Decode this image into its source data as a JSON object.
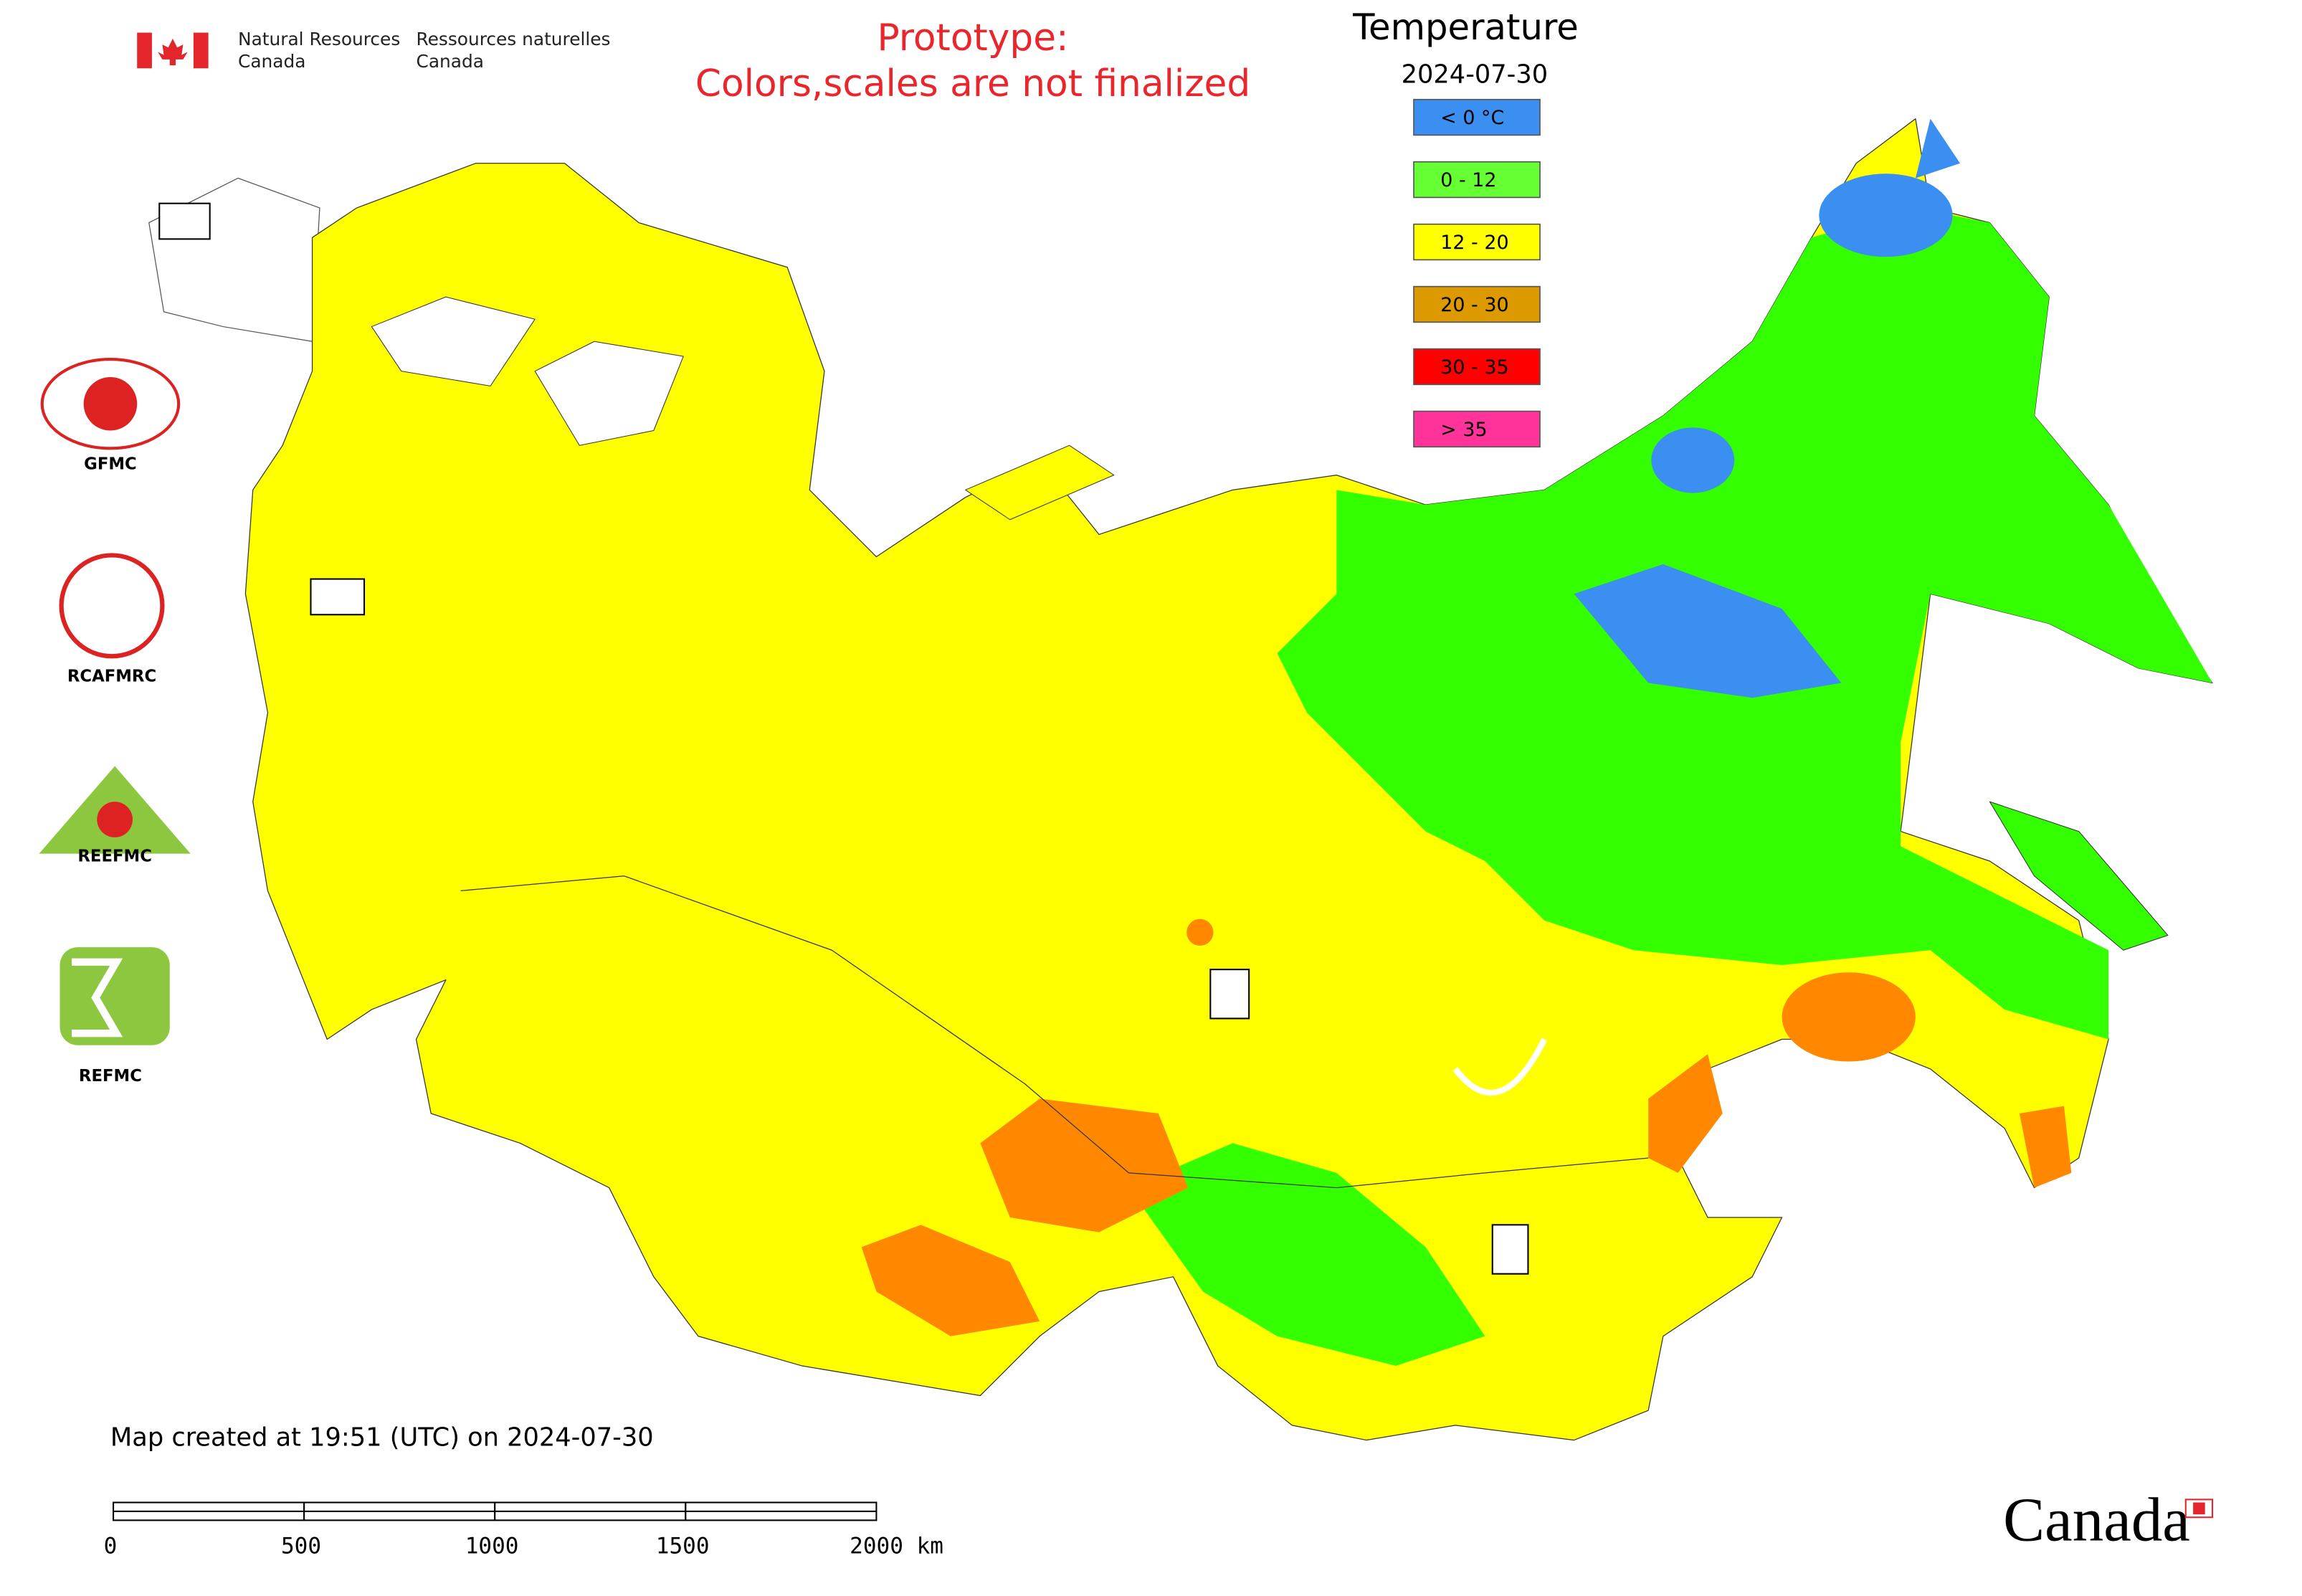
{
  "header": {
    "agency_en": [
      "Natural Resources",
      "Canada"
    ],
    "agency_fr": [
      "Ressources naturelles",
      "Canada"
    ]
  },
  "notice": [
    "Prototype:",
    "Colors,scales are not finalized"
  ],
  "legend": {
    "title": "Temperature",
    "date": "2024-07-30",
    "items": [
      {
        "label": "< 0 °C",
        "color": "#3a8ff0"
      },
      {
        "label": "0 - 12",
        "color": "#66ff33"
      },
      {
        "label": "12 - 20",
        "color": "#ffff00"
      },
      {
        "label": "20 - 30",
        "color": "#dd9900"
      },
      {
        "label": "30 - 35",
        "color": "#ff0000"
      },
      {
        "label": "> 35",
        "color": "#ff3399"
      }
    ]
  },
  "logos": [
    "GFMC",
    "RCAFMRC",
    "REEFMC",
    "REFMC"
  ],
  "footer": {
    "created": "Map created at 19:51 (UTC) on 2024-07-30",
    "scale_labels": [
      "0",
      "500",
      "1000",
      "1500",
      "2000 km"
    ]
  },
  "wordmark": "Canada"
}
